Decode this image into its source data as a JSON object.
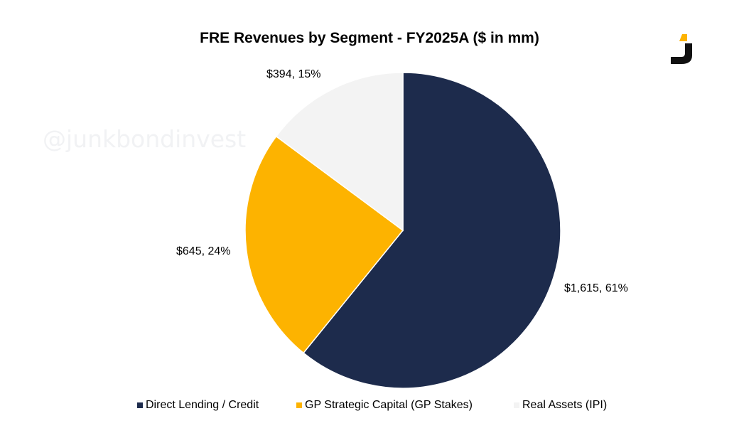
{
  "chart_data": {
    "type": "pie",
    "title": "FRE Revenues by Segment - FY2025A ($ in mm)",
    "slices": [
      {
        "name": "Direct Lending / Credit",
        "value": 1615,
        "percent": 61,
        "label": "$1,615, 61%",
        "color": "#1d2b4c"
      },
      {
        "name": "GP Strategic Capital (GP Stakes)",
        "value": 645,
        "percent": 24,
        "label": "$645, 24%",
        "color": "#fdb300"
      },
      {
        "name": "Real Assets (IPI)",
        "value": 394,
        "percent": 15,
        "label": "$394, 15%",
        "color": "#f3f3f3"
      }
    ],
    "legend_position": "bottom"
  },
  "watermark": "@junkbondinvest",
  "logo": {
    "icon": "j-logo-icon",
    "colors": {
      "accent": "#fdb300",
      "dark": "#111111"
    }
  }
}
